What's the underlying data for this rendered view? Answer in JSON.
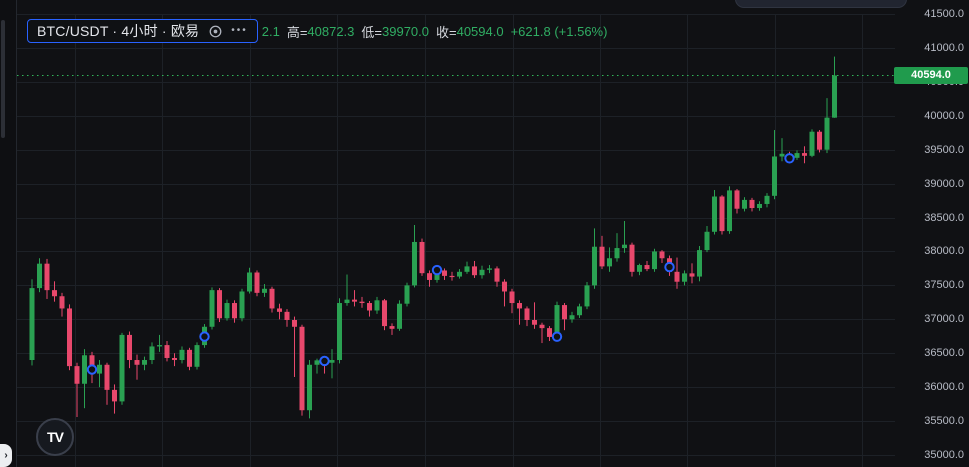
{
  "colors": {
    "background": "#101114",
    "grid": "#1d2127",
    "up": "#2aa152",
    "down": "#e8486c",
    "dotted_line": "#32b75a",
    "badge_bg": "#209b4d",
    "marker_ring": "#2962ff",
    "legend_value_green": "#30ad63",
    "axis_text": "#b8bcc6",
    "symbol_box_border": "#2962ff"
  },
  "legend": {
    "symbol_title": "BTC/USDT · 4小时 · 欧易",
    "eye_icon": "visibility-eye",
    "more_icon": "ellipsis-more",
    "more_glyph": "•••",
    "open_tail": "2.1",
    "high_label": "高=",
    "high_value": "40872.3",
    "low_label": "低=",
    "low_value": "39970.0",
    "close_label": "收=",
    "close_value": "40594.0",
    "change_text": "+621.8 (+1.56%)"
  },
  "logo_text": "TV",
  "drawer_chevron": "›",
  "chart_data": {
    "type": "candlestick",
    "title": "BTC/USDT 4小时 欧易",
    "symbol": "BTC/USDT",
    "interval": "4小时",
    "exchange": "欧易",
    "ylim": [
      35000,
      41500
    ],
    "grid": true,
    "price_axis_labels": [
      "41500.0",
      "41000.0",
      "40500.0",
      "40000.0",
      "39500.0",
      "39000.0",
      "38500.0",
      "38000.0",
      "37500.0",
      "37000.0",
      "36500.0",
      "36000.0",
      "35500.0",
      "35000.0"
    ],
    "last_price": 40594.0,
    "last_price_label": "40594.0",
    "last_bar": {
      "open": 39972.1,
      "high": 40872.3,
      "low": 39970.0,
      "close": 40594.0,
      "change": "+621.8",
      "change_pct": "+1.56%"
    },
    "ohlc": [
      [
        36400,
        37590,
        36320,
        37460
      ],
      [
        37460,
        37900,
        37400,
        37820
      ],
      [
        37820,
        37890,
        37300,
        37430
      ],
      [
        37430,
        37560,
        37260,
        37340
      ],
      [
        37340,
        37390,
        37040,
        37160
      ],
      [
        37160,
        37220,
        36250,
        36310
      ],
      [
        36310,
        36360,
        35560,
        36050
      ],
      [
        36050,
        36560,
        35690,
        36470
      ],
      [
        36470,
        36520,
        36060,
        36200
      ],
      [
        36200,
        36400,
        36000,
        36330
      ],
      [
        36330,
        36360,
        35740,
        35960
      ],
      [
        35960,
        36040,
        35610,
        35790
      ],
      [
        35790,
        36800,
        35740,
        36770
      ],
      [
        36770,
        36820,
        36280,
        36400
      ],
      [
        36400,
        36480,
        36110,
        36330
      ],
      [
        36330,
        36450,
        36250,
        36400
      ],
      [
        36400,
        36660,
        36340,
        36600
      ],
      [
        36600,
        36770,
        36520,
        36620
      ],
      [
        36620,
        36680,
        36380,
        36430
      ],
      [
        36430,
        36500,
        36310,
        36400
      ],
      [
        36400,
        36600,
        36350,
        36550
      ],
      [
        36550,
        36580,
        36250,
        36300
      ],
      [
        36300,
        36660,
        36260,
        36620
      ],
      [
        36620,
        36930,
        36580,
        36890
      ],
      [
        36890,
        37470,
        36850,
        37430
      ],
      [
        37430,
        37460,
        36960,
        37015
      ],
      [
        37015,
        37290,
        36980,
        37240
      ],
      [
        37240,
        37280,
        36950,
        37015
      ],
      [
        37015,
        37450,
        36970,
        37410
      ],
      [
        37410,
        37760,
        37380,
        37690
      ],
      [
        37690,
        37720,
        37340,
        37390
      ],
      [
        37390,
        37520,
        37330,
        37450
      ],
      [
        37450,
        37480,
        37100,
        37160
      ],
      [
        37160,
        37230,
        37000,
        37110
      ],
      [
        37110,
        37150,
        36890,
        36990
      ],
      [
        36990,
        37040,
        36150,
        36890
      ],
      [
        36890,
        36920,
        35580,
        35660
      ],
      [
        35660,
        36400,
        35540,
        36330
      ],
      [
        36330,
        36420,
        36200,
        36395
      ],
      [
        36395,
        36450,
        36200,
        36360
      ],
      [
        36360,
        36560,
        36130,
        36400
      ],
      [
        36400,
        37310,
        36350,
        37240
      ],
      [
        37240,
        37660,
        37200,
        37290
      ],
      [
        37290,
        37430,
        37190,
        37260
      ],
      [
        37260,
        37330,
        37170,
        37240
      ],
      [
        37240,
        37270,
        37040,
        37130
      ],
      [
        37130,
        37330,
        37080,
        37280
      ],
      [
        37280,
        37300,
        36840,
        36900
      ],
      [
        36900,
        36940,
        36770,
        36860
      ],
      [
        36860,
        37280,
        36830,
        37230
      ],
      [
        37230,
        37540,
        37190,
        37500
      ],
      [
        37500,
        38390,
        37470,
        38140
      ],
      [
        38140,
        38190,
        37640,
        37680
      ],
      [
        37680,
        37720,
        37480,
        37580
      ],
      [
        37580,
        37780,
        37540,
        37720
      ],
      [
        37720,
        37750,
        37580,
        37640
      ],
      [
        37640,
        37700,
        37570,
        37630
      ],
      [
        37630,
        37740,
        37600,
        37700
      ],
      [
        37700,
        37850,
        37670,
        37780
      ],
      [
        37780,
        37860,
        37610,
        37650
      ],
      [
        37650,
        37790,
        37600,
        37730
      ],
      [
        37730,
        37800,
        37680,
        37750
      ],
      [
        37750,
        37780,
        37480,
        37555
      ],
      [
        37555,
        37590,
        37190,
        37410
      ],
      [
        37410,
        37450,
        37090,
        37240
      ],
      [
        37240,
        37280,
        36920,
        37160
      ],
      [
        37160,
        37190,
        36900,
        36990
      ],
      [
        36990,
        37250,
        36860,
        36920
      ],
      [
        36920,
        36950,
        36650,
        36870
      ],
      [
        36870,
        36900,
        36680,
        36740
      ],
      [
        36740,
        37260,
        36700,
        37210
      ],
      [
        37210,
        37240,
        36840,
        37000
      ],
      [
        37000,
        37110,
        36950,
        37060
      ],
      [
        37060,
        37230,
        37020,
        37190
      ],
      [
        37190,
        37550,
        37150,
        37500
      ],
      [
        37500,
        38340,
        37450,
        38070
      ],
      [
        38070,
        38230,
        37740,
        37780
      ],
      [
        37780,
        38060,
        37700,
        37900
      ],
      [
        37900,
        38270,
        37850,
        38050
      ],
      [
        38050,
        38449,
        37980,
        38100
      ],
      [
        38100,
        38130,
        37630,
        37700
      ],
      [
        37700,
        37820,
        37650,
        37800
      ],
      [
        37800,
        37860,
        37710,
        37740
      ],
      [
        37740,
        38040,
        37700,
        38000
      ],
      [
        38000,
        38020,
        37830,
        37900
      ],
      [
        37900,
        37940,
        37640,
        37700
      ],
      [
        37700,
        37910,
        37450,
        37554
      ],
      [
        37554,
        37720,
        37500,
        37677
      ],
      [
        37677,
        37825,
        37530,
        37630
      ],
      [
        37630,
        38080,
        37560,
        38020
      ],
      [
        38020,
        38375,
        37990,
        38290
      ],
      [
        38290,
        38906,
        38250,
        38810
      ],
      [
        38810,
        38830,
        38250,
        38300
      ],
      [
        38300,
        38960,
        38260,
        38900
      ],
      [
        38900,
        38920,
        38560,
        38630
      ],
      [
        38630,
        38800,
        38590,
        38760
      ],
      [
        38760,
        38790,
        38590,
        38640
      ],
      [
        38640,
        38740,
        38600,
        38700
      ],
      [
        38700,
        38860,
        38650,
        38820
      ],
      [
        38820,
        39790,
        38770,
        39400
      ],
      [
        39400,
        39670,
        39330,
        39440
      ],
      [
        39440,
        39470,
        39340,
        39380
      ],
      [
        39380,
        39490,
        39350,
        39450
      ],
      [
        39450,
        39550,
        39300,
        39410
      ],
      [
        39410,
        39800,
        39390,
        39765
      ],
      [
        39765,
        39790,
        39460,
        39500
      ],
      [
        39500,
        40260,
        39450,
        39972
      ],
      [
        39972.1,
        40872.3,
        39970.0,
        40594.0
      ]
    ],
    "buy_markers": [
      {
        "index": 8,
        "price": 36260
      },
      {
        "index": 23,
        "price": 36745
      },
      {
        "index": 39,
        "price": 36386
      },
      {
        "index": 54,
        "price": 37726
      },
      {
        "index": 70,
        "price": 36744
      },
      {
        "index": 85,
        "price": 37770
      },
      {
        "index": 101,
        "price": 39373
      }
    ]
  }
}
